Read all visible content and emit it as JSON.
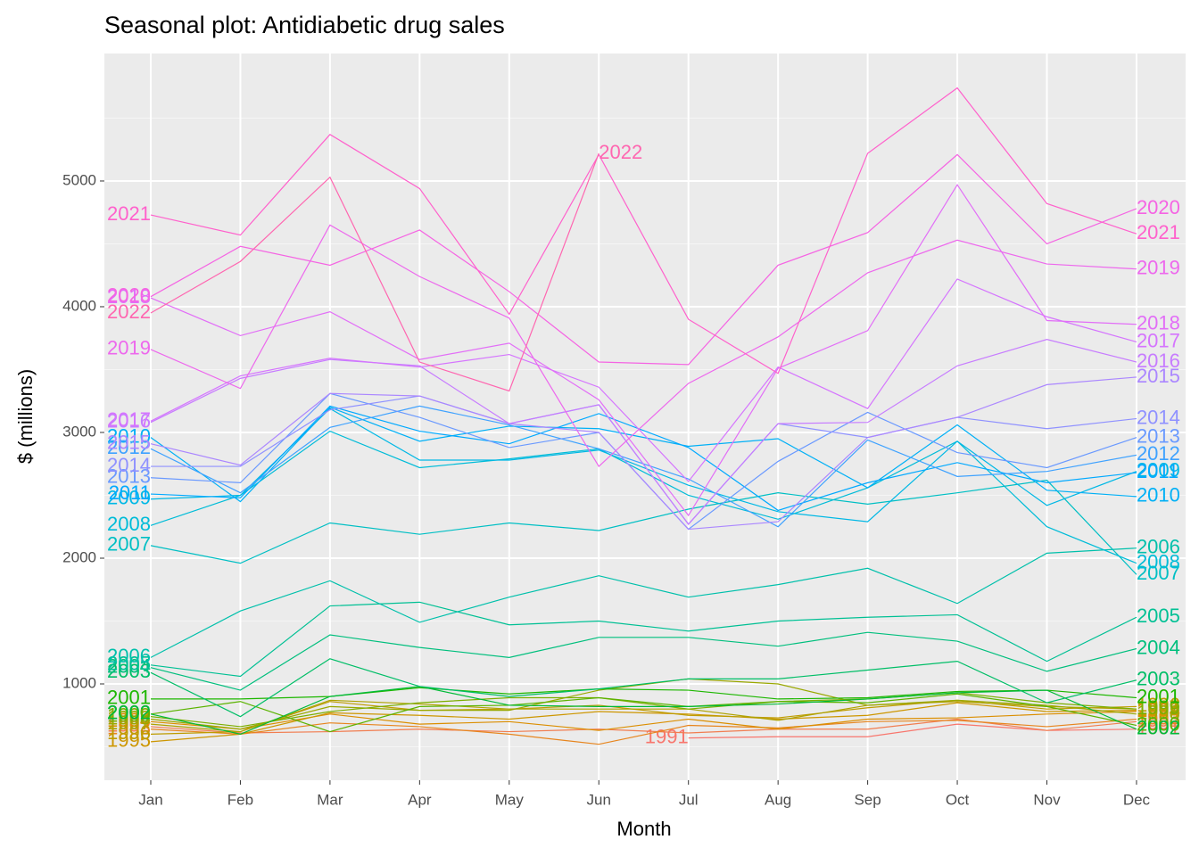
{
  "chart_data": {
    "type": "line",
    "title": "Seasonal plot: Antidiabetic drug sales",
    "x_label": "Month",
    "y_label": "$ (millions)",
    "categories": [
      "Jan",
      "Feb",
      "Mar",
      "Apr",
      "May",
      "Jun",
      "Jul",
      "Aug",
      "Sep",
      "Oct",
      "Nov",
      "Dec"
    ],
    "ylim": [
      234,
      6014
    ],
    "yticks": [
      1000,
      2000,
      3000,
      4000,
      5000
    ],
    "yminor": [
      500,
      1500,
      2500,
      3500,
      4500,
      5500
    ],
    "grid": true,
    "series": [
      {
        "name": "1991",
        "color": "#F8766D",
        "values": [
          null,
          null,
          null,
          null,
          null,
          null,
          570,
          580,
          580,
          680,
          630,
          640
        ]
      },
      {
        "name": "1992",
        "color": "#F17D50",
        "values": [
          660,
          610,
          620,
          640,
          620,
          640,
          610,
          640,
          640,
          720,
          630,
          700
        ]
      },
      {
        "name": "1993",
        "color": "#E7851E",
        "values": [
          640,
          600,
          690,
          660,
          600,
          520,
          670,
          650,
          700,
          710,
          660,
          720
        ]
      },
      {
        "name": "1994",
        "color": "#DB8E00",
        "values": [
          700,
          640,
          760,
          680,
          700,
          630,
          720,
          640,
          720,
          730,
          760,
          780
        ]
      },
      {
        "name": "1995",
        "color": "#CD9600",
        "values": [
          540,
          600,
          770,
          750,
          720,
          780,
          760,
          720,
          750,
          850,
          780,
          790
        ]
      },
      {
        "name": "1996",
        "color": "#BE9C00",
        "values": [
          600,
          620,
          860,
          790,
          800,
          830,
          750,
          730,
          810,
          870,
          800,
          820
        ]
      },
      {
        "name": "1997",
        "color": "#AEA200",
        "values": [
          680,
          620,
          870,
          840,
          800,
          800,
          800,
          710,
          830,
          860,
          820,
          800
        ]
      },
      {
        "name": "1998",
        "color": "#9AA800",
        "values": [
          720,
          640,
          820,
          790,
          790,
          950,
          1040,
          1000,
          830,
          870,
          830,
          760
        ]
      },
      {
        "name": "1999",
        "color": "#7CAE00",
        "values": [
          740,
          660,
          780,
          850,
          890,
          890,
          800,
          860,
          880,
          930,
          850,
          800
        ]
      },
      {
        "name": "2000",
        "color": "#5BB300",
        "values": [
          760,
          860,
          620,
          820,
          830,
          890,
          820,
          860,
          850,
          920,
          820,
          670
        ]
      },
      {
        "name": "2001",
        "color": "#1DB700",
        "values": [
          880,
          880,
          900,
          970,
          920,
          960,
          950,
          880,
          890,
          940,
          950,
          890
        ]
      },
      {
        "name": "2002",
        "color": "#00BA38",
        "values": [
          760,
          600,
          900,
          980,
          830,
          820,
          820,
          840,
          880,
          930,
          950,
          640
        ]
      },
      {
        "name": "2003",
        "color": "#00BE67",
        "values": [
          1090,
          740,
          1200,
          980,
          900,
          960,
          1040,
          1040,
          1110,
          1180,
          850,
          1030
        ]
      },
      {
        "name": "2004",
        "color": "#00BF7D",
        "values": [
          1130,
          950,
          1390,
          1290,
          1210,
          1370,
          1370,
          1300,
          1410,
          1340,
          1100,
          1280
        ]
      },
      {
        "name": "2005",
        "color": "#00C094",
        "values": [
          1150,
          1060,
          1620,
          1650,
          1470,
          1500,
          1420,
          1500,
          1530,
          1550,
          1180,
          1530
        ]
      },
      {
        "name": "2006",
        "color": "#00C0AB",
        "values": [
          1210,
          1580,
          1820,
          1490,
          1690,
          1860,
          1690,
          1790,
          1920,
          1640,
          2040,
          2080
        ]
      },
      {
        "name": "2007",
        "color": "#00BFC4",
        "values": [
          2100,
          1960,
          2280,
          2190,
          2280,
          2220,
          2390,
          2520,
          2430,
          2520,
          2620,
          1870
        ]
      },
      {
        "name": "2008",
        "color": "#00BCD8",
        "values": [
          2260,
          2500,
          3010,
          2720,
          2790,
          2870,
          2500,
          2310,
          2560,
          2930,
          2250,
          1960
        ]
      },
      {
        "name": "2009",
        "color": "#00B8E5",
        "values": [
          2470,
          2500,
          3190,
          2780,
          2780,
          2860,
          2580,
          2370,
          2290,
          2930,
          2420,
          2690
        ]
      },
      {
        "name": "2010",
        "color": "#00B0F6",
        "values": [
          2960,
          2450,
          3200,
          2930,
          3050,
          3030,
          2890,
          2950,
          2560,
          3060,
          2540,
          2490
        ]
      },
      {
        "name": "2011",
        "color": "#00A9FF",
        "values": [
          2510,
          2480,
          3210,
          3010,
          2910,
          3150,
          2880,
          2380,
          2600,
          2760,
          2600,
          2680
        ]
      },
      {
        "name": "2012",
        "color": "#3FA2FF",
        "values": [
          2870,
          2520,
          3040,
          3210,
          3060,
          2870,
          2630,
          2250,
          2940,
          2650,
          2690,
          2820
        ]
      },
      {
        "name": "2013",
        "color": "#6A99FF",
        "values": [
          2640,
          2600,
          3310,
          3120,
          2880,
          3000,
          2230,
          2770,
          3160,
          2840,
          2720,
          2960
        ]
      },
      {
        "name": "2014",
        "color": "#8F91FF",
        "values": [
          2730,
          2730,
          3180,
          3290,
          3070,
          3220,
          2270,
          3070,
          2960,
          3120,
          3030,
          3110
        ]
      },
      {
        "name": "2015",
        "color": "#AB87FF",
        "values": [
          2910,
          2740,
          3310,
          3290,
          3070,
          3000,
          2230,
          2290,
          2960,
          3120,
          3380,
          3440
        ]
      },
      {
        "name": "2016",
        "color": "#C77CFF",
        "values": [
          3080,
          3430,
          3580,
          3530,
          3070,
          3220,
          2270,
          3070,
          3080,
          3530,
          3740,
          3560
        ]
      },
      {
        "name": "2017",
        "color": "#D575FE",
        "values": [
          3090,
          3450,
          3590,
          3520,
          3620,
          3360,
          2610,
          3520,
          3190,
          4220,
          3920,
          3720
        ]
      },
      {
        "name": "2018",
        "color": "#E26EF7",
        "values": [
          4070,
          3770,
          3960,
          3580,
          3710,
          3260,
          2340,
          3510,
          3810,
          4970,
          3890,
          3860
        ]
      },
      {
        "name": "2019",
        "color": "#ED68ED",
        "values": [
          3660,
          3350,
          4650,
          4240,
          3910,
          2730,
          3390,
          3760,
          4270,
          4530,
          4340,
          4300
        ]
      },
      {
        "name": "2020",
        "color": "#F564E3",
        "values": [
          4080,
          4480,
          4330,
          4610,
          4120,
          3560,
          3540,
          4330,
          4590,
          5210,
          4500,
          4780
        ]
      },
      {
        "name": "2021",
        "color": "#FF61CC",
        "values": [
          4730,
          4570,
          5370,
          4940,
          3940,
          5210,
          3900,
          3470,
          5220,
          5740,
          4820,
          4580
        ]
      },
      {
        "name": "2022",
        "color": "#FF66B0",
        "values": [
          3950,
          4360,
          5030,
          3560,
          3330,
          5220,
          null,
          null,
          null,
          null,
          null,
          null
        ]
      }
    ]
  }
}
